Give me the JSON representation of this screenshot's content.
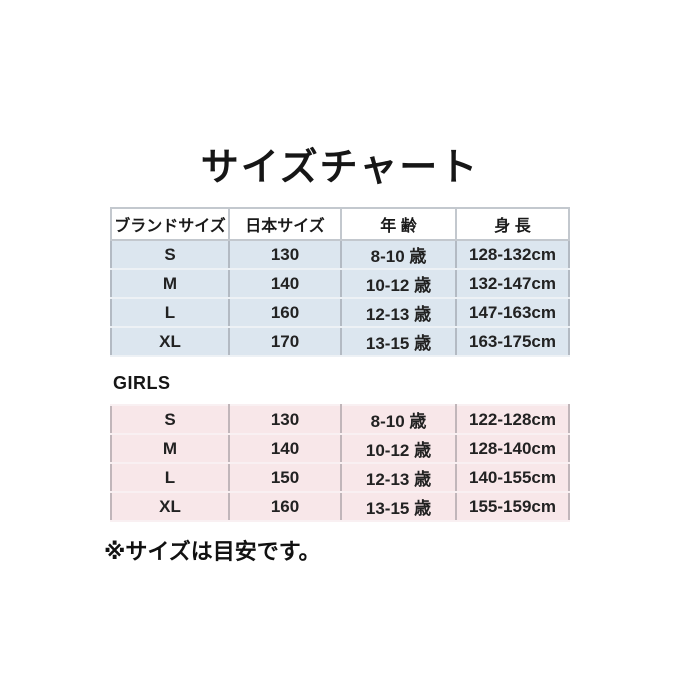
{
  "title": "サイズチャート",
  "girls_label": "GIRLS",
  "footnote": "※サイズは目安です。",
  "colors": {
    "background": "#ffffff",
    "boys_row_bg": "#dce6ef",
    "girls_row_bg": "#f8e7e9",
    "header_bg": "#ffffff",
    "boys_divider": "#b3bac3",
    "girls_divider": "#c1b6ba",
    "text": "#1c1c1c"
  },
  "chart_data": {
    "type": "table",
    "title": "サイズチャート",
    "columns": [
      "ブランドサイズ",
      "日本サイズ",
      "年 齢",
      "身 長"
    ],
    "boys": {
      "rows": [
        [
          "S",
          "130",
          "8-10 歳",
          "128-132cm"
        ],
        [
          "M",
          "140",
          "10-12 歳",
          "132-147cm"
        ],
        [
          "L",
          "160",
          "12-13 歳",
          "147-163cm"
        ],
        [
          "XL",
          "170",
          "13-15 歳",
          "163-175cm"
        ]
      ]
    },
    "girls": {
      "label": "GIRLS",
      "rows": [
        [
          "S",
          "130",
          "8-10 歳",
          "122-128cm"
        ],
        [
          "M",
          "140",
          "10-12 歳",
          "128-140cm"
        ],
        [
          "L",
          "150",
          "12-13 歳",
          "140-155cm"
        ],
        [
          "XL",
          "160",
          "13-15 歳",
          "155-159cm"
        ]
      ]
    },
    "note": "※サイズは目安です。"
  }
}
